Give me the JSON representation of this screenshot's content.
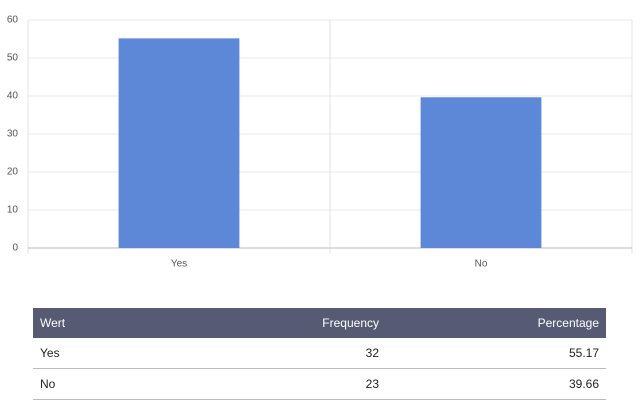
{
  "chart_data": {
    "type": "bar",
    "categories": [
      "Yes",
      "No"
    ],
    "values": [
      55.17,
      39.66
    ],
    "color": "#5d88d7",
    "ylim": [
      0,
      60
    ],
    "yticks": [
      0,
      10,
      20,
      30,
      40,
      50,
      60
    ],
    "grid": true
  },
  "table": {
    "header": [
      "Wert",
      "Frequency",
      "Percentage"
    ],
    "rows": [
      [
        "Yes",
        32,
        55.17
      ],
      [
        "No",
        23,
        39.66
      ]
    ]
  }
}
